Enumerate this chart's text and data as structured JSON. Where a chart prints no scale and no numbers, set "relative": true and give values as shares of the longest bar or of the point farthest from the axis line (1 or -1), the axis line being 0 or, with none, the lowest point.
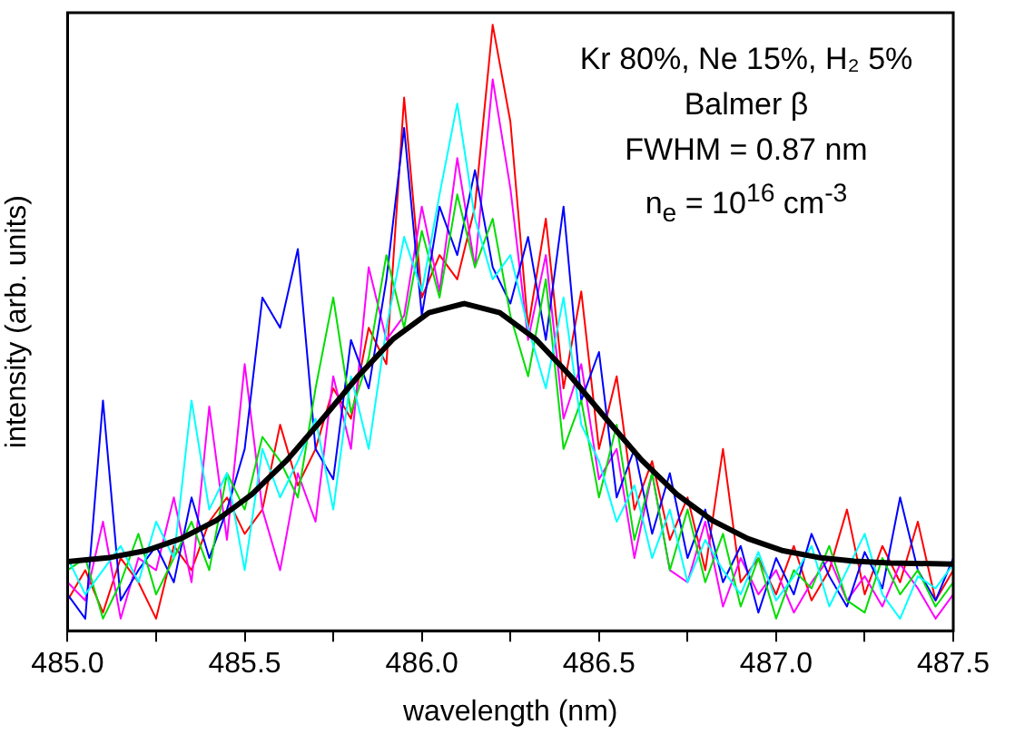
{
  "chart_data": {
    "type": "line",
    "relative": true,
    "xlabel": "wavelength (nm)",
    "ylabel": "intensity (arb. units)",
    "annotations": [
      "Kr 80%, Ne 15%, H₂ 5%",
      "Balmer β",
      "FWHM = 0.87 nm",
      "n$_{e}$ = 10$^{16}$ cm$^{-3}$"
    ],
    "x": [
      485.0,
      485.05,
      485.1,
      485.15,
      485.2,
      485.25,
      485.3,
      485.35,
      485.4,
      485.45,
      485.5,
      485.55,
      485.6,
      485.65,
      485.7,
      485.75,
      485.8,
      485.85,
      485.9,
      485.95,
      486.0,
      486.05,
      486.1,
      486.15,
      486.2,
      486.25,
      486.3,
      486.35,
      486.4,
      486.45,
      486.5,
      486.55,
      486.6,
      486.65,
      486.7,
      486.75,
      486.8,
      486.85,
      486.9,
      486.95,
      487.0,
      487.05,
      487.1,
      487.15,
      487.2,
      487.25,
      487.3,
      487.35,
      487.4,
      487.45,
      487.5
    ],
    "xlim": [
      485.0,
      487.5
    ],
    "xticks": [
      {
        "value": 485.0,
        "label": "485.0"
      },
      {
        "value": 485.25,
        "label": null
      },
      {
        "value": 485.5,
        "label": "485.5"
      },
      {
        "value": 485.75,
        "label": null
      },
      {
        "value": 486.0,
        "label": "486.0"
      },
      {
        "value": 486.25,
        "label": null
      },
      {
        "value": 486.5,
        "label": "486.5"
      },
      {
        "value": 486.75,
        "label": null
      },
      {
        "value": 487.0,
        "label": "487.0"
      },
      {
        "value": 487.25,
        "label": null
      },
      {
        "value": 487.5,
        "label": "487.5"
      }
    ],
    "grid": false,
    "legend": false,
    "marker": "none",
    "line_style": "solid",
    "series": [
      {
        "color": "#ff0000",
        "values": [
          0.05,
          0.1,
          0.03,
          0.12,
          0.08,
          0.02,
          0.14,
          0.1,
          0.18,
          0.22,
          0.16,
          0.2,
          0.34,
          0.24,
          0.3,
          0.4,
          0.35,
          0.5,
          0.44,
          0.88,
          0.55,
          0.62,
          0.58,
          0.7,
          1.0,
          0.84,
          0.5,
          0.68,
          0.4,
          0.56,
          0.3,
          0.42,
          0.2,
          0.28,
          0.15,
          0.22,
          0.1,
          0.3,
          0.08,
          0.12,
          0.06,
          0.14,
          0.05,
          0.1,
          0.2,
          0.06,
          0.14,
          0.08,
          0.18,
          0.05,
          0.1
        ]
      },
      {
        "color": "#ff00ff",
        "values": [
          0.08,
          0.05,
          0.18,
          0.02,
          0.12,
          0.1,
          0.22,
          0.08,
          0.37,
          0.15,
          0.44,
          0.2,
          0.1,
          0.26,
          0.18,
          0.42,
          0.3,
          0.6,
          0.48,
          0.52,
          0.7,
          0.56,
          0.78,
          0.6,
          0.91,
          0.73,
          0.48,
          0.62,
          0.35,
          0.44,
          0.25,
          0.3,
          0.12,
          0.26,
          0.1,
          0.08,
          0.18,
          0.04,
          0.12,
          0.06,
          0.1,
          0.03,
          0.08,
          0.12,
          0.05,
          0.09,
          0.04,
          0.11,
          0.07,
          0.02,
          0.06
        ]
      },
      {
        "color": "#0000ff",
        "values": [
          0.06,
          0.02,
          0.38,
          0.05,
          0.1,
          0.14,
          0.08,
          0.22,
          0.12,
          0.2,
          0.3,
          0.55,
          0.5,
          0.63,
          0.3,
          0.25,
          0.48,
          0.4,
          0.58,
          0.83,
          0.52,
          0.7,
          0.62,
          0.76,
          0.6,
          0.54,
          0.65,
          0.48,
          0.7,
          0.38,
          0.46,
          0.22,
          0.3,
          0.16,
          0.26,
          0.12,
          0.2,
          0.08,
          0.14,
          0.03,
          0.12,
          0.06,
          0.16,
          0.09,
          0.04,
          0.13,
          0.07,
          0.22,
          0.1,
          0.05,
          0.12
        ]
      },
      {
        "color": "#00dd00",
        "values": [
          0.1,
          0.12,
          0.02,
          0.08,
          0.16,
          0.06,
          0.12,
          0.18,
          0.1,
          0.26,
          0.2,
          0.32,
          0.28,
          0.22,
          0.4,
          0.55,
          0.36,
          0.45,
          0.62,
          0.5,
          0.66,
          0.55,
          0.72,
          0.6,
          0.68,
          0.52,
          0.42,
          0.58,
          0.3,
          0.38,
          0.22,
          0.34,
          0.15,
          0.26,
          0.1,
          0.2,
          0.08,
          0.16,
          0.04,
          0.12,
          0.02,
          0.1,
          0.07,
          0.14,
          0.05,
          0.03,
          0.12,
          0.06,
          0.1,
          0.04,
          0.08
        ]
      },
      {
        "color": "#00ffff",
        "values": [
          0.12,
          0.06,
          0.1,
          0.14,
          0.08,
          0.18,
          0.12,
          0.38,
          0.2,
          0.26,
          0.1,
          0.3,
          0.22,
          0.28,
          0.35,
          0.2,
          0.42,
          0.3,
          0.5,
          0.65,
          0.56,
          0.72,
          0.87,
          0.68,
          0.58,
          0.62,
          0.5,
          0.4,
          0.55,
          0.34,
          0.28,
          0.18,
          0.24,
          0.12,
          0.2,
          0.08,
          0.15,
          0.1,
          0.06,
          0.13,
          0.05,
          0.09,
          0.14,
          0.04,
          0.1,
          0.16,
          0.06,
          0.02,
          0.09,
          0.07,
          0.11
        ]
      },
      {
        "type": "line",
        "color": "#000000",
        "x": [
          485.0,
          485.12,
          485.22,
          485.32,
          485.42,
          485.52,
          485.62,
          485.72,
          485.82,
          485.92,
          486.02,
          486.12,
          486.22,
          486.32,
          486.42,
          486.52,
          486.62,
          486.72,
          486.82,
          486.92,
          487.02,
          487.12,
          487.22,
          487.32,
          487.5
        ],
        "values": [
          0.114,
          0.121,
          0.132,
          0.152,
          0.182,
          0.225,
          0.282,
          0.35,
          0.42,
          0.482,
          0.525,
          0.54,
          0.525,
          0.482,
          0.42,
          0.35,
          0.282,
          0.225,
          0.182,
          0.152,
          0.132,
          0.121,
          0.115,
          0.112,
          0.11
        ]
      }
    ]
  }
}
